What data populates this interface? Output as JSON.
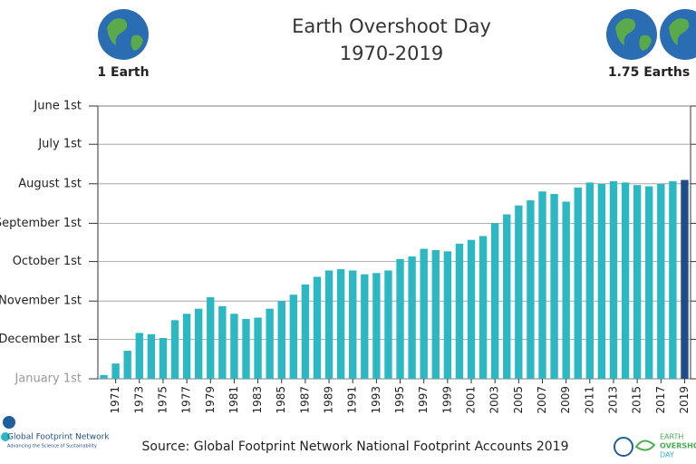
{
  "chart_data": {
    "type": "bar",
    "title": "Earth Overshoot Day",
    "subtitle": "1970-2019",
    "left_globe_label": "1 Earth",
    "right_globe_label": "1.75 Earths",
    "source": "Source: Global Footprint Network National Footprint Accounts 2019",
    "logo_left": {
      "name": "Global Footprint Network",
      "tagline": "Advancing the Science of Sustainability"
    },
    "logo_right": [
      "EARTH",
      "OVERSHOOT",
      "DAY"
    ],
    "categories": [
      null,
      "1971",
      null,
      "1973",
      null,
      "1975",
      null,
      "1977",
      null,
      "1979",
      null,
      "1981",
      null,
      "1983",
      null,
      "1985",
      null,
      "1987",
      null,
      "1989",
      null,
      "1991",
      null,
      "1993",
      null,
      "1995",
      null,
      "1997",
      null,
      "1999",
      null,
      "2001",
      null,
      "2003",
      null,
      "2005",
      null,
      "2007",
      null,
      "2009",
      null,
      "2011",
      null,
      "2013",
      null,
      "2015",
      null,
      "2017",
      null,
      "2019"
    ],
    "values": [
      363,
      354,
      344,
      330,
      331,
      334,
      320,
      315,
      311,
      302,
      309,
      315,
      319,
      318,
      311,
      305,
      300,
      292,
      286,
      281,
      280,
      281,
      284,
      283,
      281,
      272,
      270,
      264,
      265,
      266,
      260,
      257,
      254,
      244,
      237,
      230,
      226,
      219,
      221,
      227,
      216,
      212,
      213,
      211,
      212,
      214,
      215,
      213,
      211,
      210
    ],
    "color": "#2bb8c3",
    "highlight_color": "#1f4d8a",
    "ylim": [
      366,
      152
    ],
    "yticks": [
      {
        "value": 152,
        "label": "June 1st"
      },
      {
        "value": 182,
        "label": "July 1st"
      },
      {
        "value": 213,
        "label": "August 1st"
      },
      {
        "value": 244,
        "label": "September 1st"
      },
      {
        "value": 274,
        "label": "October 1st"
      },
      {
        "value": 305,
        "label": "November 1st"
      },
      {
        "value": 335,
        "label": "December 1st"
      },
      {
        "value": 366,
        "label": "January 1st"
      }
    ],
    "grid": true
  }
}
